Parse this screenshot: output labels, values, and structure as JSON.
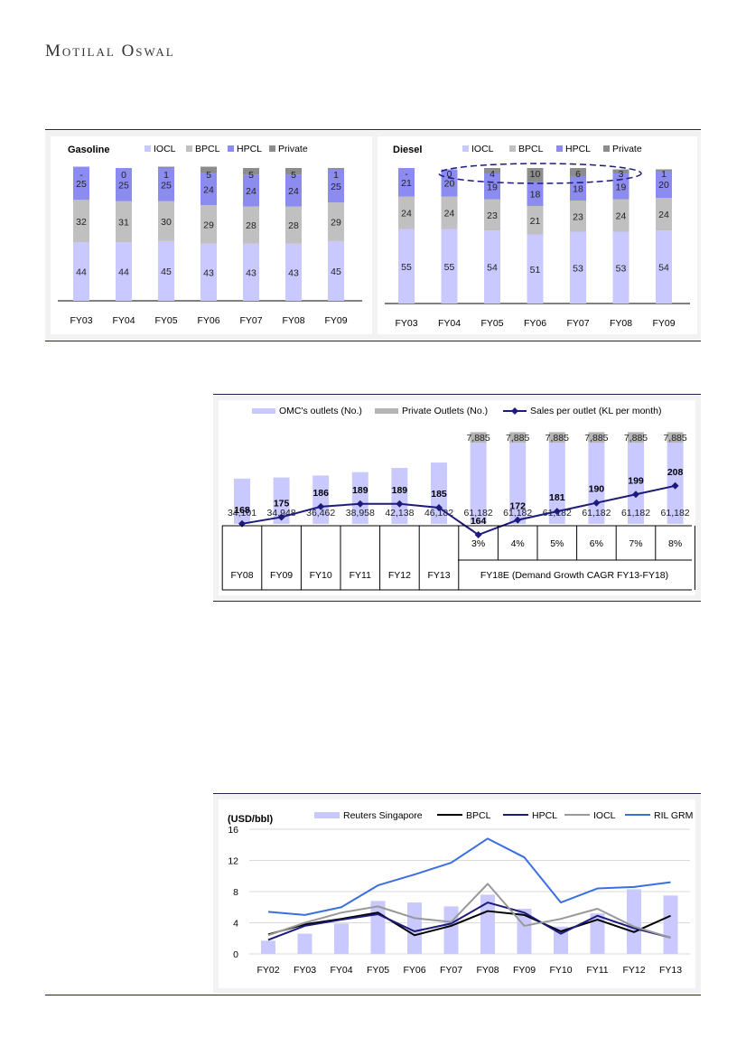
{
  "header": {
    "brand": "Motilal Oswal"
  },
  "chart_data": [
    {
      "id": "gasoline",
      "type": "stacked-bar",
      "title": "Gasoline",
      "categories": [
        "FY03",
        "FY04",
        "FY05",
        "FY06",
        "FY07",
        "FY08",
        "FY09"
      ],
      "series": [
        {
          "name": "IOCL",
          "values": [
            44,
            44,
            45,
            43,
            43,
            43,
            45
          ],
          "color": "#c9c9ff"
        },
        {
          "name": "BPCL",
          "values": [
            32,
            31,
            30,
            29,
            28,
            28,
            29
          ],
          "color": "#c0c0c0"
        },
        {
          "name": "HPCL",
          "values": [
            25,
            25,
            25,
            24,
            24,
            24,
            25
          ],
          "color": "#8c8cf0"
        },
        {
          "name": "Private",
          "values": [
            0,
            0,
            1,
            5,
            5,
            5,
            1
          ],
          "color": "#8c8c8c"
        }
      ],
      "top_labels": [
        "-",
        "0",
        "1",
        "5",
        "5",
        "5",
        "1"
      ]
    },
    {
      "id": "diesel",
      "type": "stacked-bar",
      "title": "Diesel",
      "categories": [
        "FY03",
        "FY04",
        "FY05",
        "FY06",
        "FY07",
        "FY08",
        "FY09"
      ],
      "series": [
        {
          "name": "IOCL",
          "values": [
            55,
            55,
            54,
            51,
            53,
            53,
            54
          ],
          "color": "#c9c9ff"
        },
        {
          "name": "BPCL",
          "values": [
            24,
            24,
            23,
            21,
            23,
            24,
            24
          ],
          "color": "#c0c0c0"
        },
        {
          "name": "HPCL",
          "values": [
            21,
            20,
            19,
            18,
            18,
            19,
            20
          ],
          "color": "#8c8cf0"
        },
        {
          "name": "Private",
          "values": [
            0,
            0,
            4,
            10,
            6,
            3,
            1
          ],
          "color": "#8c8c8c"
        }
      ],
      "top_labels": [
        "-",
        "0",
        "4",
        "10",
        "6",
        "3",
        "1"
      ]
    },
    {
      "id": "outlets",
      "type": "bar+line",
      "categories": [
        "FY08",
        "FY09",
        "FY10",
        "FY11",
        "FY12",
        "FY13",
        "3%",
        "4%",
        "5%",
        "6%",
        "7%",
        "8%"
      ],
      "series": [
        {
          "name": "OMC's outlets (No.)",
          "type": "bar",
          "values": [
            34101,
            34948,
            36462,
            38958,
            42138,
            46182,
            61182,
            61182,
            61182,
            61182,
            61182,
            61182
          ],
          "labels": [
            "34,101",
            "34,948",
            "36,462",
            "38,958",
            "42,138",
            "46,182",
            "61,182",
            "61,182",
            "61,182",
            "61,182",
            "61,182",
            "61,182"
          ],
          "color": "#c9c9ff"
        },
        {
          "name": "Private Outlets (No.)",
          "type": "bar",
          "values": [
            0,
            0,
            0,
            0,
            0,
            0,
            7885,
            7885,
            7885,
            7885,
            7885,
            7885
          ],
          "labels": [
            "",
            "",
            "",
            "",
            "",
            "",
            "7,885",
            "7,885",
            "7,885",
            "7,885",
            "7,885",
            "7,885"
          ],
          "color": "#b4b4b4"
        },
        {
          "name": "Sales per outlet (KL per month)",
          "type": "line",
          "values": [
            168,
            175,
            186,
            189,
            189,
            185,
            164,
            172,
            181,
            190,
            199,
            208
          ],
          "color": "#1c1a7a"
        }
      ],
      "year_labels": [
        "FY08",
        "FY09",
        "FY10",
        "FY11",
        "FY12",
        "FY13"
      ],
      "growth_labels": [
        "3%",
        "4%",
        "5%",
        "6%",
        "7%",
        "8%"
      ],
      "projection_label": "FY18E (Demand Growth CAGR FY13-FY18)"
    },
    {
      "id": "grm",
      "type": "bar+line",
      "ylabel": "(USD/bbl)",
      "ylim": [
        0,
        16
      ],
      "yticks": [
        0,
        4,
        8,
        12,
        16
      ],
      "categories": [
        "FY02",
        "FY03",
        "FY04",
        "FY05",
        "FY06",
        "FY07",
        "FY08",
        "FY09",
        "FY10",
        "FY11",
        "FY12",
        "FY13"
      ],
      "series": [
        {
          "name": "Reuters Singapore",
          "type": "bar",
          "values": [
            1.7,
            2.6,
            3.9,
            6.8,
            6.6,
            6.1,
            7.6,
            5.8,
            3.5,
            5.2,
            8.3,
            7.5
          ],
          "color": "#c9c9ff"
        },
        {
          "name": "BPCL",
          "type": "line",
          "values": [
            2.5,
            3.8,
            4.5,
            5.3,
            2.4,
            3.6,
            5.5,
            5.0,
            2.9,
            4.4,
            2.8,
            4.9
          ],
          "color": "#000000"
        },
        {
          "name": "HPCL",
          "type": "line",
          "values": [
            1.8,
            3.6,
            4.4,
            5.1,
            2.9,
            3.9,
            6.6,
            5.3,
            2.6,
            4.9,
            3.3,
            2.1
          ],
          "color": "#1c1a7a"
        },
        {
          "name": "IOCL",
          "type": "line",
          "values": [
            2.4,
            4.0,
            5.3,
            6.1,
            4.6,
            4.1,
            9.0,
            3.6,
            4.5,
            5.8,
            3.5,
            2.1
          ],
          "color": "#999999"
        },
        {
          "name": "RIL GRM",
          "type": "line",
          "values": [
            5.4,
            5.0,
            6.0,
            8.8,
            10.2,
            11.7,
            14.8,
            12.4,
            6.6,
            8.4,
            8.6,
            9.2
          ],
          "color": "#3a6fe0"
        }
      ]
    }
  ]
}
